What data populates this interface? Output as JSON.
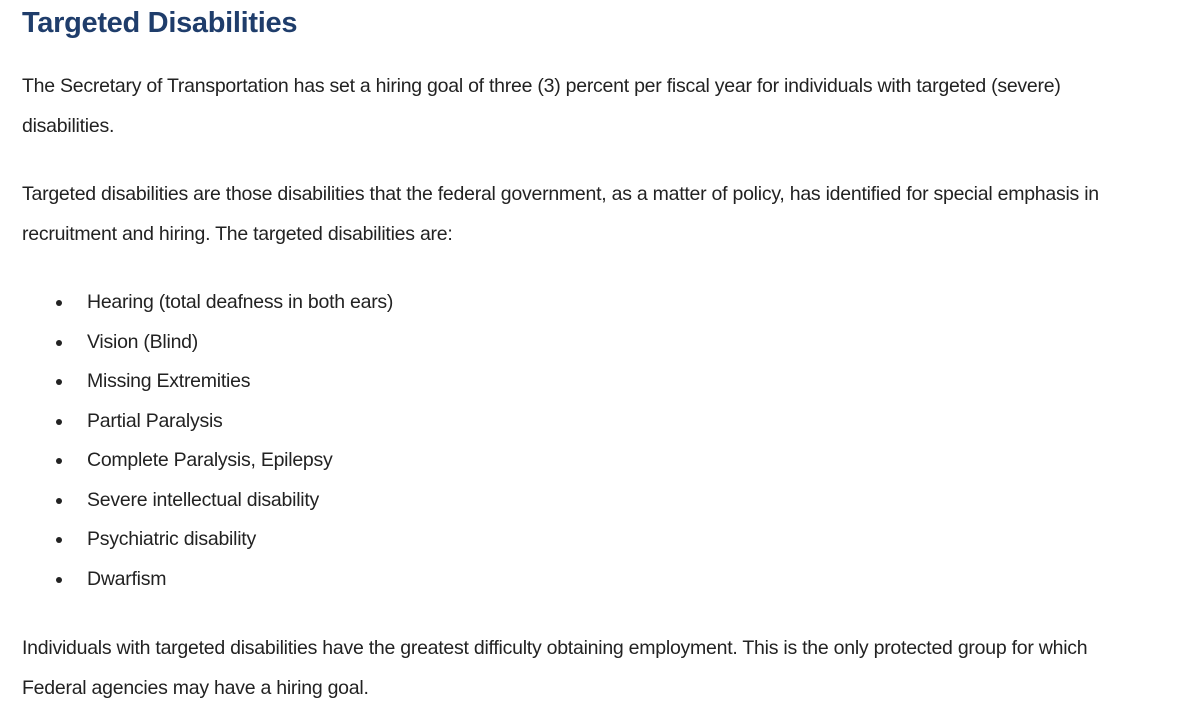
{
  "heading": "Targeted Disabilities",
  "paragraphs": [
    "The Secretary of Transportation has set a hiring goal of three (3) percent per fiscal year for individuals with targeted (severe) disabilities.",
    "Targeted disabilities are those disabilities that the federal government, as a matter of policy, has identified for special emphasis in recruitment and hiring. The targeted disabilities are:",
    "Individuals with targeted disabilities have the greatest difficulty obtaining employment. This is the only protected group for which Federal agencies may have a hiring goal."
  ],
  "list": [
    "Hearing (total deafness in both ears)",
    "Vision (Blind)",
    "Missing Extremities",
    "Partial Paralysis",
    "Complete Paralysis, Epilepsy",
    "Severe intellectual disability",
    "Psychiatric disability",
    "Dwarfism"
  ],
  "colors": {
    "heading": "#1f3d6b",
    "text": "#222222"
  }
}
